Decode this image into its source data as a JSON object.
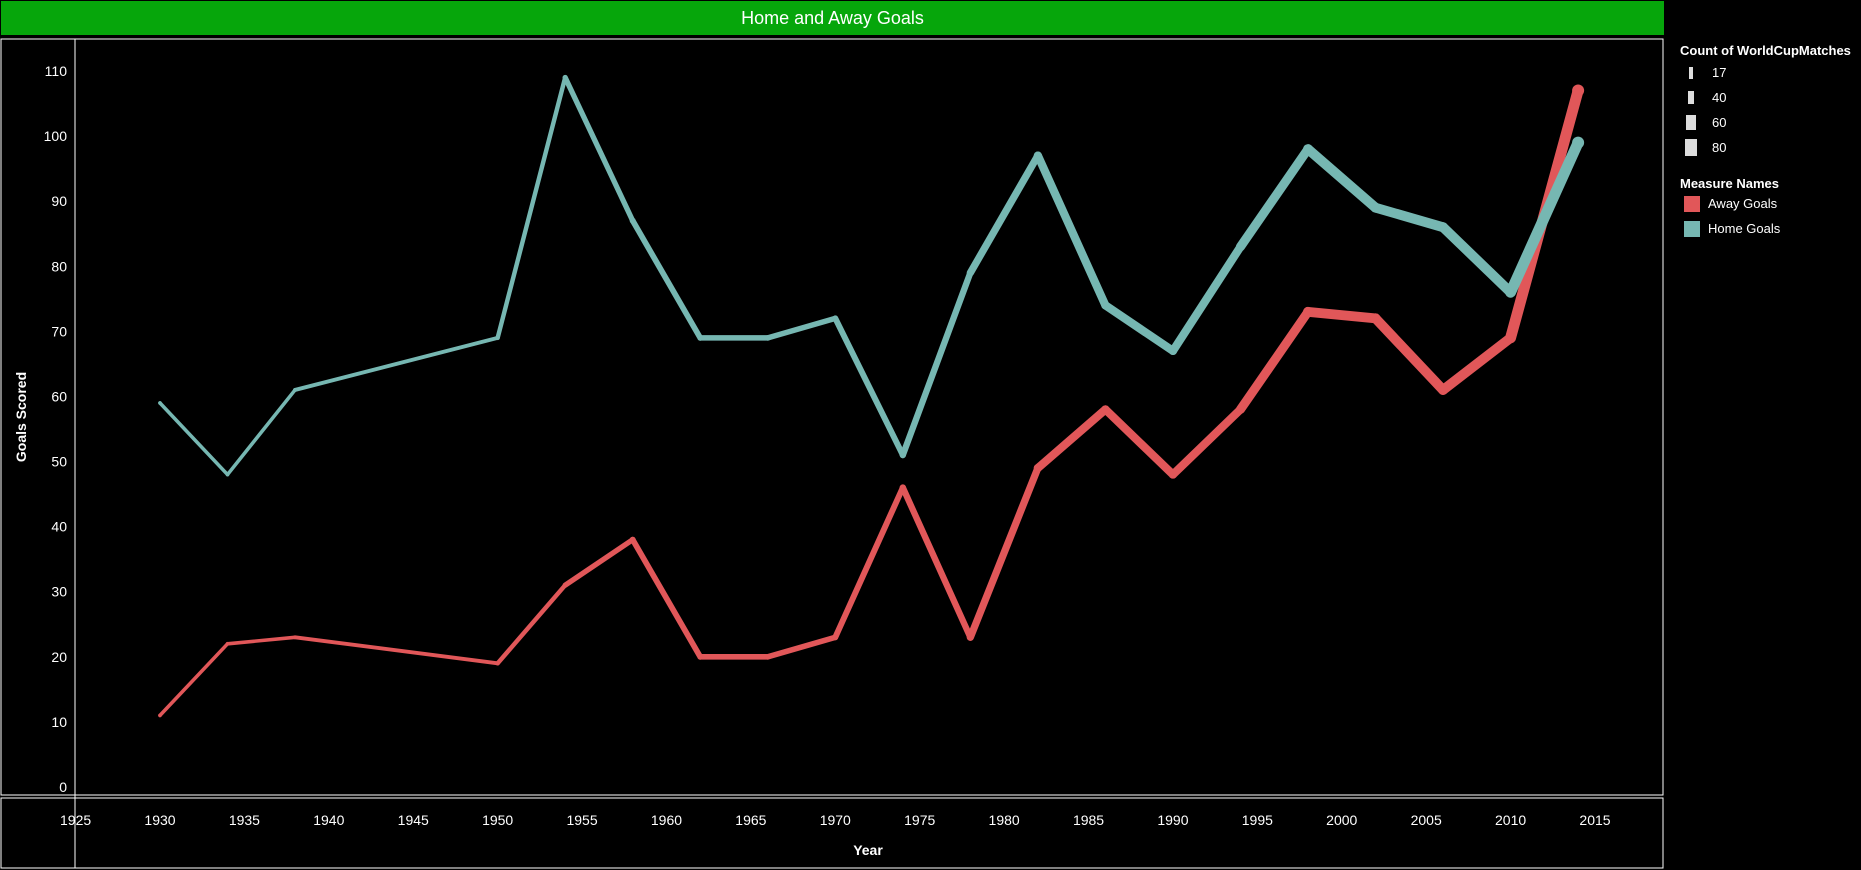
{
  "chart_data": {
    "type": "line",
    "title": "Home and Away Goals",
    "xlabel": "Year",
    "ylabel": "Goals Scored",
    "xlim": [
      1923,
      2020
    ],
    "ylim": [
      0,
      110
    ],
    "xticks": [
      1925,
      1930,
      1935,
      1940,
      1945,
      1950,
      1955,
      1960,
      1965,
      1970,
      1975,
      1980,
      1985,
      1990,
      1995,
      2000,
      2005,
      2010,
      2015
    ],
    "yticks": [
      0,
      10,
      20,
      30,
      40,
      50,
      60,
      70,
      80,
      90,
      100,
      110
    ],
    "x": [
      1930,
      1934,
      1938,
      1950,
      1954,
      1958,
      1962,
      1966,
      1970,
      1974,
      1978,
      1982,
      1986,
      1990,
      1994,
      1998,
      2002,
      2006,
      2010,
      2014
    ],
    "match_counts": [
      18,
      17,
      18,
      22,
      26,
      35,
      32,
      32,
      32,
      38,
      38,
      52,
      52,
      52,
      52,
      64,
      64,
      64,
      64,
      80
    ],
    "series": [
      {
        "name": "Away Goals",
        "color": "#e15759",
        "values": [
          11,
          22,
          23,
          19,
          31,
          38,
          20,
          20,
          23,
          46,
          23,
          49,
          58,
          48,
          58,
          73,
          72,
          61,
          69,
          107
        ]
      },
      {
        "name": "Home Goals",
        "color": "#76b7b2",
        "values": [
          59,
          48,
          61,
          69,
          109,
          87,
          69,
          69,
          72,
          51,
          79,
          97,
          74,
          67,
          83,
          98,
          89,
          86,
          76,
          99
        ]
      }
    ],
    "grid": false,
    "legend_position": "right"
  },
  "legend": {
    "size_title": "Count of WorldCupMatches",
    "size_items": [
      {
        "label": "17",
        "value": 17
      },
      {
        "label": "40",
        "value": 40
      },
      {
        "label": "60",
        "value": 60
      },
      {
        "label": "80",
        "value": 80
      }
    ],
    "color_title": "Measure Names",
    "color_items": [
      {
        "label": "Away Goals",
        "color": "#e15759"
      },
      {
        "label": "Home Goals",
        "color": "#76b7b2"
      }
    ]
  },
  "colors": {
    "title_bar": "#06a60b",
    "background": "#000000",
    "frame": "#ffffff"
  }
}
